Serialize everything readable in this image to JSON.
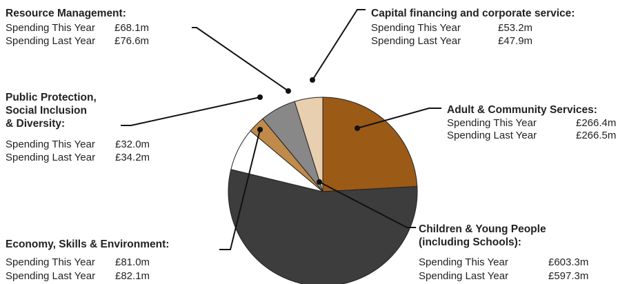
{
  "chart_data": {
    "type": "pie",
    "categories": [
      [
        "Adult & Community Services:"
      ],
      [
        "Children & Young People",
        "(including Schools):"
      ],
      [
        "Economy, Skills & Environment:"
      ],
      [
        "Public Protection,",
        "Social Inclusion",
        "& Diversity:"
      ],
      [
        "Resource Management:"
      ],
      [
        "Capital financing and corporate service:"
      ]
    ],
    "values": [
      266.4,
      603.3,
      81.0,
      32.0,
      68.1,
      53.2
    ],
    "value_labels": [
      "£266.4m",
      "£603.3m",
      "£81.0m",
      "£32.0m",
      "£68.1m",
      "£53.2m"
    ],
    "last_year_labels": [
      "£266.5m",
      "£597.3m",
      "£82.1m",
      "£34.2m",
      "£76.6m",
      "£47.9m"
    ],
    "this_year_label": "Spending This Year",
    "last_year_label": "Spending Last Year",
    "colors": [
      "#9c5a17",
      "#3d3d3d",
      "#ffffff",
      "#c08a4a",
      "#888888",
      "#e8cfb0"
    ]
  }
}
